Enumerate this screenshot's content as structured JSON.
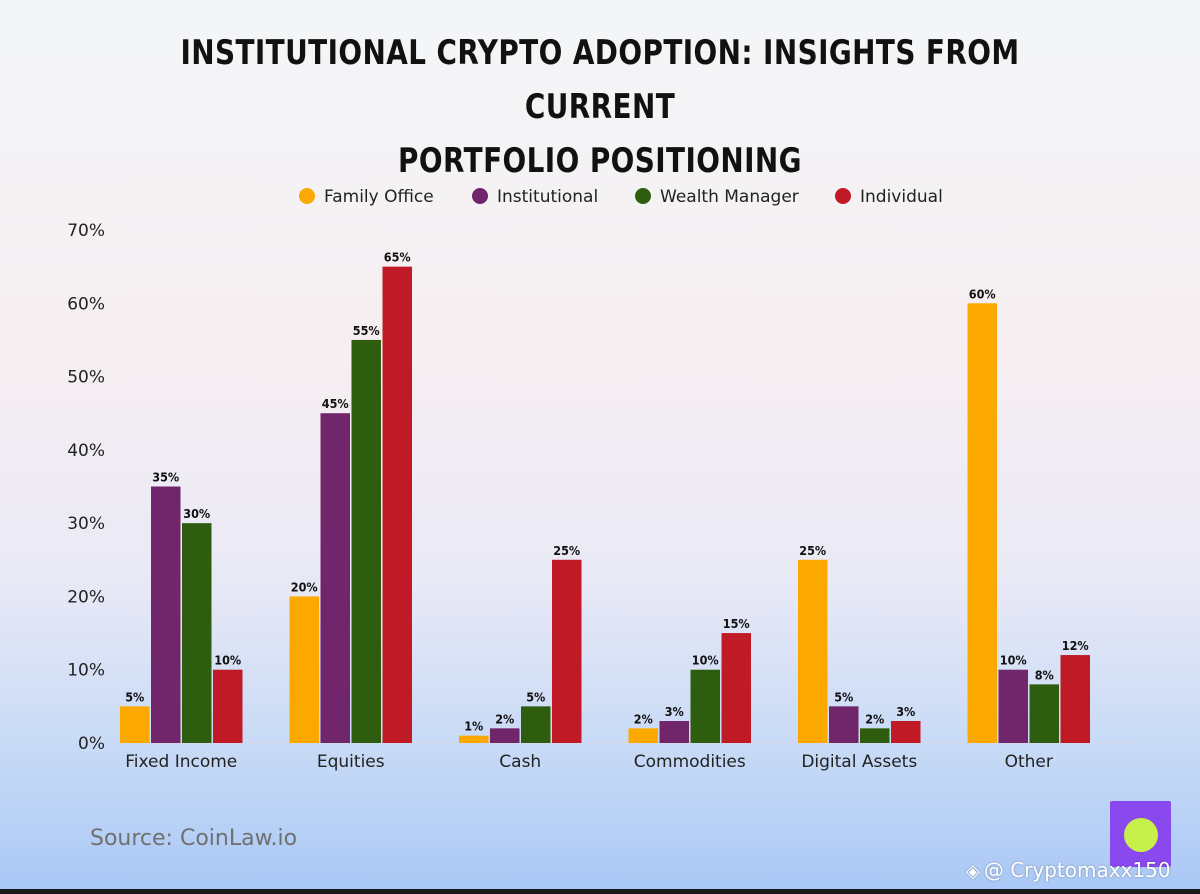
{
  "chart_data": {
    "type": "bar",
    "title_lines": [
      "Institutional Crypto Adoption: Insights from Current",
      "Portfolio Positioning"
    ],
    "categories": [
      "Fixed Income",
      "Equities",
      "Cash",
      "Commodities",
      "Digital Assets",
      "Other"
    ],
    "series": [
      {
        "name": "Family Office",
        "color": "#fba900",
        "values": [
          5,
          20,
          1,
          2,
          25,
          60
        ]
      },
      {
        "name": "Institutional",
        "color": "#71256b",
        "values": [
          35,
          45,
          2,
          3,
          5,
          10
        ]
      },
      {
        "name": "Wealth Manager",
        "color": "#2f5d0f",
        "values": [
          30,
          55,
          5,
          10,
          2,
          8
        ]
      },
      {
        "name": "Individual",
        "color": "#c01a26",
        "values": [
          10,
          65,
          25,
          15,
          3,
          12
        ]
      }
    ],
    "ylim": [
      0,
      70
    ],
    "yticks": [
      0,
      10,
      20,
      30,
      40,
      50,
      60,
      70
    ],
    "ytick_labels": [
      "0%",
      "10%",
      "20%",
      "30%",
      "40%",
      "50%",
      "60%",
      "70%"
    ],
    "value_suffix": "%",
    "legend_position": "top-center",
    "grid": false,
    "xlabel": "",
    "ylabel": ""
  },
  "source": "Source: CoinLaw.io",
  "watermark": {
    "icon": "diamond-logo-icon",
    "text": "@ Cryptomaxx150"
  },
  "badge": {
    "icon": "compass-icon",
    "color": "#8a49ef"
  }
}
